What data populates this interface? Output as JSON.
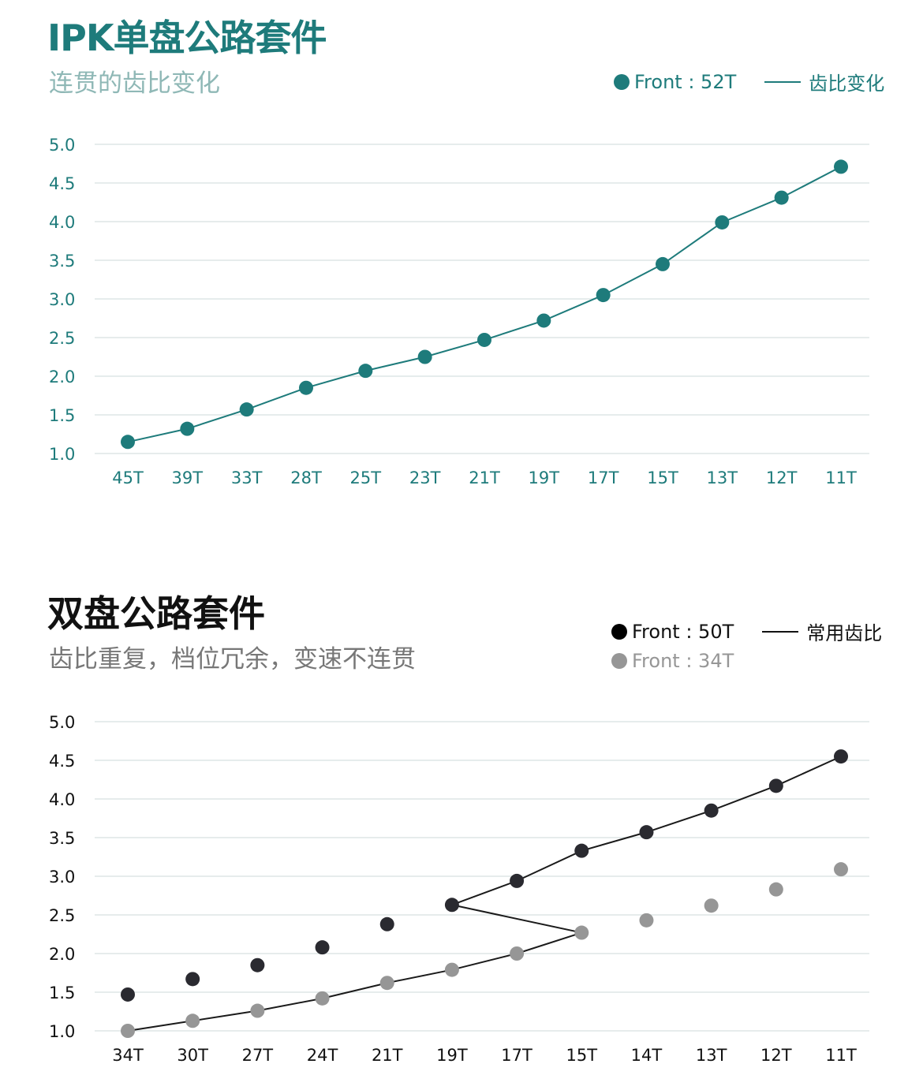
{
  "colors": {
    "teal": "#1e7b7b",
    "dark": "#2a2a30",
    "gray": "#969696",
    "grid": "#e8eeee"
  },
  "chart_data": [
    {
      "type": "line",
      "title": "IPK单盘公路套件",
      "subtitle": "连贯的齿比变化",
      "legend": {
        "dot_label": "Front : 52T",
        "line_label": "齿比变化",
        "position": "top-right"
      },
      "categories": [
        "45T",
        "39T",
        "33T",
        "28T",
        "25T",
        "23T",
        "21T",
        "19T",
        "17T",
        "15T",
        "13T",
        "12T",
        "11T"
      ],
      "series": [
        {
          "name": "Front : 52T",
          "values": [
            1.15,
            1.32,
            1.57,
            1.85,
            2.07,
            2.25,
            2.47,
            2.72,
            3.05,
            3.45,
            3.99,
            4.31,
            4.71
          ]
        }
      ],
      "yticks": [
        "5.0",
        "4.5",
        "4.0",
        "3.5",
        "3.0",
        "2.5",
        "2.0",
        "1.5",
        "1.0"
      ],
      "ylim": [
        1.0,
        5.0
      ],
      "grid": true
    },
    {
      "type": "line",
      "title": "双盘公路套件",
      "subtitle": "齿比重复，档位冗余，变速不连贯",
      "legend": {
        "dot_labels": [
          "Front : 50T",
          "Front : 34T"
        ],
        "line_label": "常用齿比",
        "position": "top-right"
      },
      "categories": [
        "34T",
        "30T",
        "27T",
        "24T",
        "21T",
        "19T",
        "17T",
        "15T",
        "14T",
        "13T",
        "12T",
        "11T"
      ],
      "series": [
        {
          "name": "Front : 50T",
          "values": [
            1.47,
            1.67,
            1.85,
            2.08,
            2.38,
            2.63,
            2.94,
            3.33,
            3.57,
            3.85,
            4.17,
            4.55
          ]
        },
        {
          "name": "Front : 34T",
          "values": [
            1.0,
            1.13,
            1.26,
            1.42,
            1.62,
            1.79,
            2.0,
            2.27,
            2.43,
            2.62,
            2.83,
            3.09
          ]
        }
      ],
      "common_path": [
        {
          "series": 1,
          "from": 0,
          "to": 7
        },
        {
          "series": 0,
          "from": 5,
          "to": 11
        }
      ],
      "yticks": [
        "5.0",
        "4.5",
        "4.0",
        "3.5",
        "3.0",
        "2.5",
        "2.0",
        "1.5",
        "1.0"
      ],
      "ylim": [
        1.0,
        5.0
      ],
      "grid": true
    }
  ]
}
